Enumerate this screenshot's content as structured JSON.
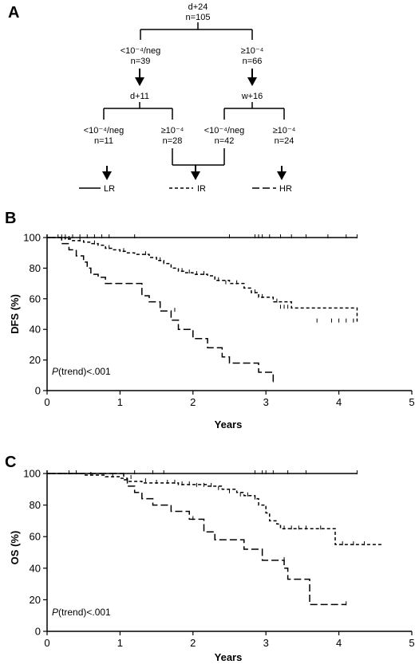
{
  "panels": {
    "a": "A",
    "b": "B",
    "c": "C"
  },
  "tree": {
    "root": {
      "label": "d+24",
      "n": "n=105"
    },
    "left": {
      "label": "<10⁻⁴/neg",
      "n": "n=39"
    },
    "right": {
      "label": "≥10⁻⁴",
      "n": "n=66"
    },
    "left_timepoint": "d+11",
    "right_timepoint": "w+16",
    "leaves": [
      {
        "label": "<10⁻⁴/neg",
        "n": "n=11"
      },
      {
        "label": "≥10⁻⁴",
        "n": "n=28"
      },
      {
        "label": "<10⁻⁴/neg",
        "n": "n=42"
      },
      {
        "label": "≥10⁻⁴",
        "n": "n=24"
      }
    ],
    "groups": [
      "LR",
      "IR",
      "HR"
    ]
  },
  "chart_data": [
    {
      "type": "line",
      "panel": "B",
      "xlabel": "Years",
      "ylabel": "DFS (%)",
      "xlim": [
        0,
        5
      ],
      "ylim": [
        0,
        100
      ],
      "xticks": [
        "0",
        "1",
        "2",
        "3",
        "4",
        "5"
      ],
      "yticks": [
        "0",
        "20",
        "40",
        "60",
        "80",
        "100"
      ],
      "annotation": {
        "italic": "P",
        "rest": "(trend)<.001"
      },
      "series": [
        {
          "name": "LR",
          "dash": "solid",
          "step": true,
          "x": [
            0,
            4.25
          ],
          "y": [
            100,
            100
          ],
          "censor_x": [
            0.15,
            0.2,
            0.25,
            0.35,
            0.45,
            0.55,
            0.65,
            0.75,
            0.85,
            1.2,
            2.5,
            2.85,
            2.9,
            2.95,
            3.05,
            3.2,
            3.35,
            3.55,
            3.85,
            4.1,
            4.25
          ],
          "censor_y": [
            100,
            100,
            100,
            100,
            100,
            100,
            100,
            100,
            100,
            100,
            100,
            100,
            100,
            100,
            100,
            100,
            100,
            100,
            100,
            100,
            100
          ]
        },
        {
          "name": "IR",
          "dash": "4,3",
          "step": true,
          "x": [
            0,
            0.25,
            0.35,
            0.5,
            0.6,
            0.7,
            0.8,
            0.9,
            1.0,
            1.1,
            1.2,
            1.4,
            1.5,
            1.6,
            1.7,
            1.8,
            1.9,
            2.0,
            2.2,
            2.3,
            2.5,
            2.7,
            2.8,
            2.9,
            3.1,
            3.35,
            4.25
          ],
          "y": [
            100,
            99,
            98,
            97,
            96,
            95,
            93,
            92,
            91,
            90,
            89,
            87,
            85,
            83,
            80,
            78,
            77,
            76,
            75,
            72,
            70,
            67,
            64,
            61,
            58,
            54,
            45
          ],
          "censor_x": [
            0.3,
            0.45,
            0.65,
            0.85,
            1.05,
            1.35,
            1.55,
            1.85,
            1.95,
            2.05,
            2.15,
            2.35,
            2.45,
            2.6,
            2.85,
            2.95,
            3.15,
            3.2,
            3.25,
            3.3,
            3.7,
            3.9,
            4.0,
            4.1,
            4.2
          ],
          "censor_y": [
            99,
            98,
            96,
            93,
            91,
            89,
            85,
            78,
            77,
            76,
            76,
            72,
            70,
            70,
            64,
            61,
            58,
            54,
            54,
            54,
            45,
            45,
            45,
            45,
            45
          ]
        },
        {
          "name": "HR",
          "dash": "9,4",
          "step": true,
          "x": [
            0,
            0.2,
            0.3,
            0.4,
            0.5,
            0.55,
            0.6,
            0.7,
            0.8,
            1.0,
            1.3,
            1.4,
            1.55,
            1.7,
            1.8,
            2.0,
            2.2,
            2.4,
            2.5,
            2.9,
            3.1
          ],
          "y": [
            100,
            96,
            92,
            88,
            84,
            80,
            76,
            74,
            70,
            70,
            62,
            58,
            52,
            46,
            40,
            34,
            28,
            22,
            18,
            12,
            6
          ],
          "censor_x": [
            1.75,
            3.1
          ],
          "censor_y": [
            52,
            6
          ]
        }
      ]
    },
    {
      "type": "line",
      "panel": "C",
      "xlabel": "Years",
      "ylabel": "OS (%)",
      "xlim": [
        0,
        5
      ],
      "ylim": [
        0,
        100
      ],
      "xticks": [
        "0",
        "1",
        "2",
        "3",
        "4",
        "5"
      ],
      "yticks": [
        "0",
        "20",
        "40",
        "60",
        "80",
        "100"
      ],
      "annotation": {
        "italic": "P",
        "rest": "(trend)<.001"
      },
      "series": [
        {
          "name": "LR",
          "dash": "solid",
          "step": true,
          "x": [
            0,
            4.25
          ],
          "y": [
            100,
            100
          ],
          "censor_x": [
            0.3,
            1.2,
            1.45,
            1.6,
            2.85,
            2.95,
            3.0,
            3.1,
            3.3,
            3.55,
            4.25
          ],
          "censor_y": [
            100,
            100,
            100,
            100,
            100,
            100,
            100,
            100,
            100,
            100,
            100
          ]
        },
        {
          "name": "IR",
          "dash": "4,3",
          "step": true,
          "x": [
            0,
            0.5,
            0.8,
            1.0,
            1.1,
            1.3,
            1.4,
            1.8,
            2.2,
            2.4,
            2.6,
            2.7,
            2.85,
            2.9,
            3.0,
            3.05,
            3.15,
            3.2,
            3.95,
            4.6
          ],
          "y": [
            100,
            99,
            98,
            97,
            95,
            94,
            94,
            93,
            92,
            90,
            88,
            86,
            84,
            80,
            75,
            70,
            68,
            65,
            55,
            55
          ],
          "censor_x": [
            0.4,
            0.6,
            0.9,
            1.15,
            1.35,
            1.5,
            1.65,
            1.75,
            1.85,
            1.95,
            2.05,
            2.15,
            2.25,
            2.35,
            2.5,
            2.65,
            2.75,
            2.85,
            3.25,
            3.35,
            3.45,
            3.55,
            3.75,
            4.05,
            4.2,
            4.35
          ],
          "censor_y": [
            100,
            99,
            98,
            97,
            95,
            94,
            94,
            94,
            93,
            93,
            92,
            92,
            92,
            90,
            88,
            86,
            86,
            84,
            65,
            65,
            65,
            65,
            65,
            55,
            55,
            55
          ]
        },
        {
          "name": "HR",
          "dash": "9,4",
          "step": true,
          "x": [
            0,
            1.05,
            1.1,
            1.2,
            1.3,
            1.45,
            1.7,
            1.95,
            2.15,
            2.3,
            2.7,
            2.95,
            3.25,
            3.3,
            3.6,
            4.1
          ],
          "y": [
            100,
            96,
            92,
            88,
            84,
            80,
            76,
            71,
            63,
            58,
            52,
            45,
            40,
            33,
            17,
            17
          ],
          "censor_x": [
            2.0,
            3.25,
            4.1
          ],
          "censor_y": [
            71,
            45,
            17
          ]
        }
      ]
    }
  ]
}
